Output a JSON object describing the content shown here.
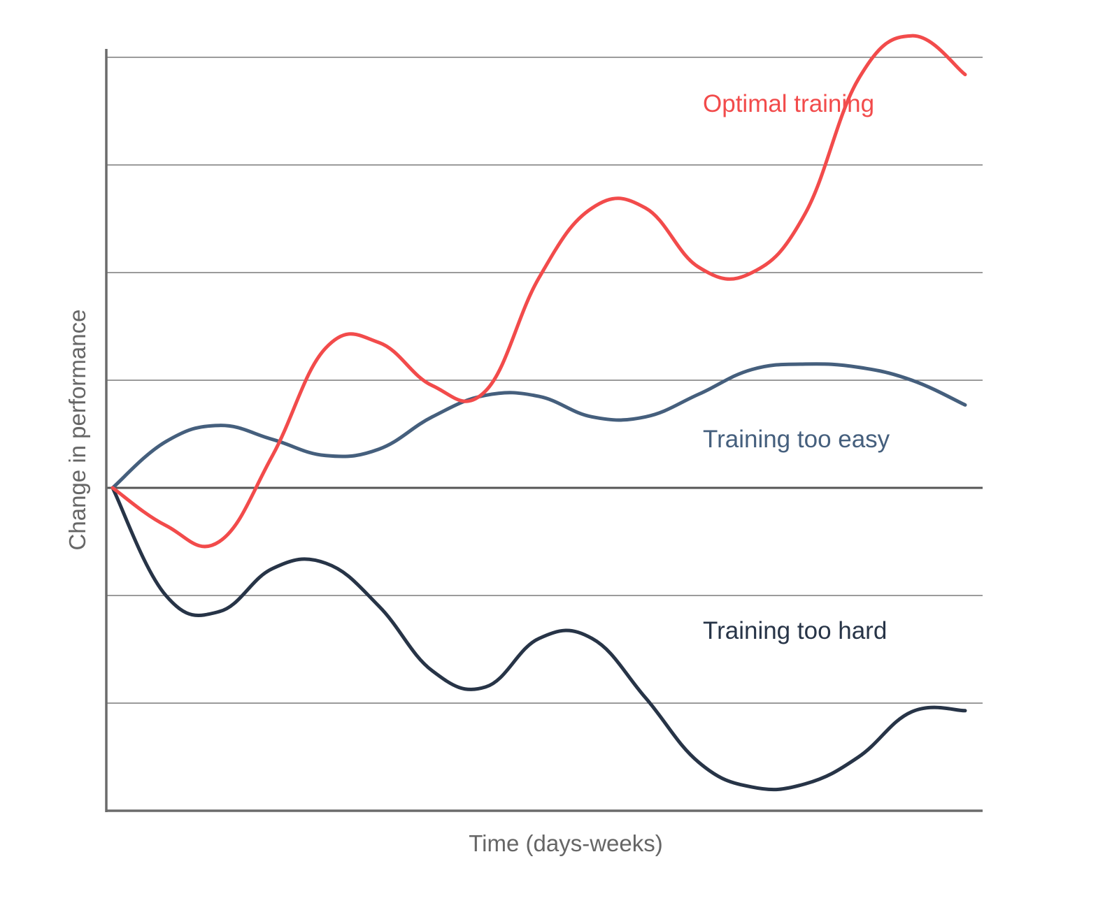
{
  "chart_data": {
    "type": "line",
    "title": "",
    "xlabel": "Time (days-weeks)",
    "ylabel": "Change in performance",
    "ylim": [
      -3,
      4
    ],
    "grid": true,
    "x": [
      0,
      0.5,
      1,
      1.5,
      2,
      2.5,
      3,
      3.5,
      4,
      4.5,
      5,
      5.5,
      6,
      6.5,
      7,
      7.5,
      8
    ],
    "series": [
      {
        "name": "Optimal training",
        "color": "#f24b4b",
        "values": [
          0.0,
          -0.35,
          -0.5,
          0.3,
          1.3,
          1.35,
          0.95,
          0.9,
          1.95,
          2.6,
          2.6,
          2.05,
          2.0,
          2.55,
          3.8,
          4.2,
          3.84
        ]
      },
      {
        "name": "Training too easy",
        "color": "#455f7d",
        "values": [
          0.0,
          0.43,
          0.58,
          0.45,
          0.3,
          0.36,
          0.66,
          0.86,
          0.85,
          0.66,
          0.66,
          0.87,
          1.1,
          1.15,
          1.12,
          1.0,
          0.77
        ]
      },
      {
        "name": "Training too hard",
        "color": "#273447",
        "values": [
          0.0,
          -1.0,
          -1.15,
          -0.75,
          -0.7,
          -1.1,
          -1.7,
          -1.85,
          -1.4,
          -1.4,
          -1.95,
          -2.55,
          -2.78,
          -2.75,
          -2.5,
          -2.08,
          -2.07
        ]
      }
    ]
  }
}
